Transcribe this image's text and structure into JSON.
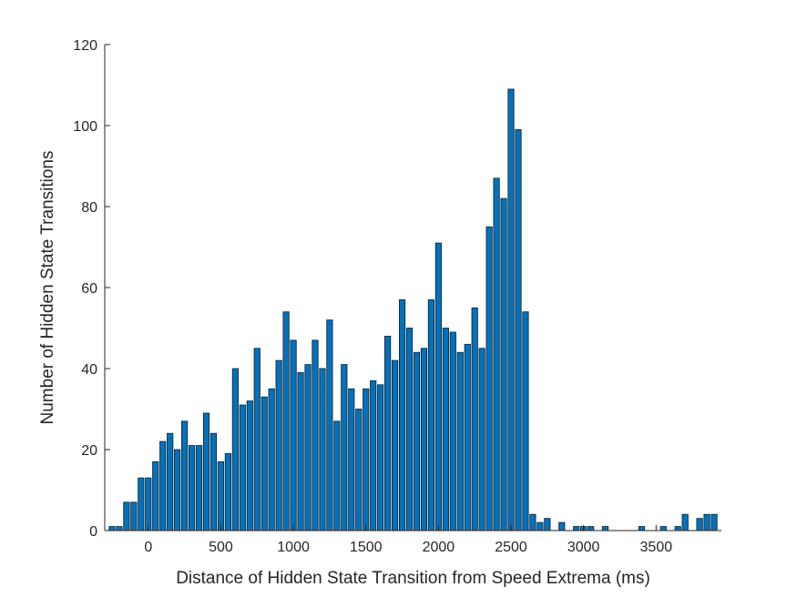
{
  "chart_data": {
    "type": "bar",
    "xlabel": "Distance of Hidden State Transition from Speed Extrema (ms)",
    "ylabel": "Number of Hidden State Transitions",
    "xlim": [
      -300,
      3950
    ],
    "ylim": [
      0,
      120
    ],
    "xticks": [
      0,
      500,
      1000,
      1500,
      2000,
      2500,
      3000,
      3500
    ],
    "yticks": [
      0,
      20,
      40,
      60,
      80,
      100,
      120
    ],
    "grid": false,
    "bar_color": "#0072BD",
    "bar_edge_color": "#1a1a1a",
    "x": [
      -250,
      -200,
      -150,
      -100,
      -50,
      0,
      50,
      100,
      150,
      200,
      250,
      300,
      350,
      400,
      450,
      500,
      550,
      600,
      650,
      700,
      750,
      800,
      850,
      900,
      950,
      1000,
      1050,
      1100,
      1150,
      1200,
      1250,
      1300,
      1350,
      1400,
      1450,
      1500,
      1550,
      1600,
      1650,
      1700,
      1750,
      1800,
      1850,
      1900,
      1950,
      2000,
      2050,
      2100,
      2150,
      2200,
      2250,
      2300,
      2350,
      2400,
      2450,
      2500,
      2550,
      2600,
      2650,
      2700,
      2750,
      2800,
      2850,
      2900,
      2950,
      3000,
      3050,
      3100,
      3150,
      3200,
      3250,
      3300,
      3350,
      3400,
      3450,
      3500,
      3550,
      3600,
      3650,
      3700,
      3750,
      3800,
      3850,
      3900
    ],
    "values": [
      1,
      1,
      7,
      7,
      13,
      13,
      17,
      22,
      24,
      20,
      27,
      21,
      21,
      29,
      24,
      17,
      19,
      40,
      31,
      32,
      45,
      33,
      35,
      42,
      54,
      47,
      39,
      41,
      47,
      40,
      52,
      27,
      41,
      35,
      30,
      35,
      37,
      36,
      48,
      42,
      57,
      50,
      44,
      45,
      57,
      71,
      50,
      49,
      44,
      46,
      55,
      45,
      75,
      87,
      82,
      109,
      99,
      54,
      4,
      2,
      3,
      0,
      2,
      0,
      1,
      1,
      1,
      0,
      1,
      0,
      0,
      0,
      0,
      1,
      0,
      0,
      1,
      0,
      1,
      4,
      0,
      3,
      4,
      4
    ]
  }
}
